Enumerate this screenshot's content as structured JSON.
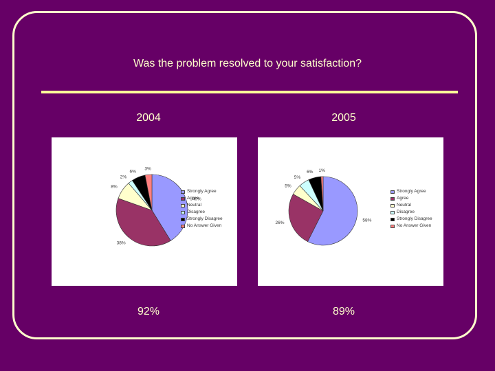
{
  "title": "Was the problem resolved to your satisfaction?",
  "colors": {
    "Strongly Agree": "#9999ff",
    "Agree": "#993366",
    "Neutral": "#ffffcc",
    "Disagree": "#ccffff",
    "Strongly Disagree": "#000000",
    "No Answer Given": "#ff8080"
  },
  "chart_data": [
    {
      "type": "pie",
      "year_label": "2004",
      "summary": "92%",
      "legend_placement": "right",
      "categories": [
        "Strongly Agree",
        "Agree",
        "Neutral",
        "Disagree",
        "Strongly Disagree",
        "No Answer Given"
      ],
      "values": [
        40,
        38,
        8,
        2,
        6,
        3
      ],
      "labels": [
        "40%",
        "38%",
        "8%",
        "2%",
        "6%",
        "3%"
      ]
    },
    {
      "type": "pie",
      "year_label": "2005",
      "summary": "89%",
      "legend_placement": "right",
      "categories": [
        "Strongly Agree",
        "Agree",
        "Neutral",
        "Disagree",
        "Strongly Disagree",
        "No Answer Given"
      ],
      "values": [
        58,
        26,
        5,
        5,
        6,
        1
      ],
      "labels": [
        "58%",
        "26%",
        "5%",
        "5%",
        "6%",
        "1%"
      ]
    }
  ]
}
